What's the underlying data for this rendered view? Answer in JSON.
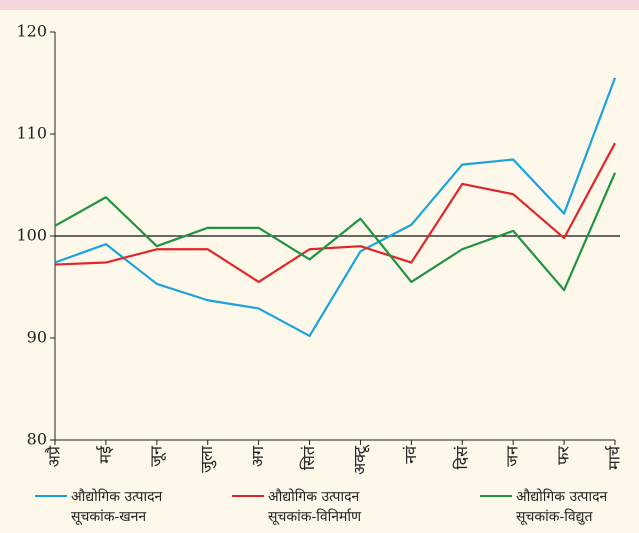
{
  "chart_data": {
    "type": "line",
    "categories": [
      "अप्रै",
      "मई",
      "जून",
      "जुला",
      "अग",
      "सितं",
      "अक्टू",
      "नवं",
      "दिसं",
      "जन",
      "फर",
      "मार्च"
    ],
    "series": [
      {
        "name": "औद्योगिक उत्पादन सूचकांक-खनन",
        "color": "#1aa3dc",
        "values": [
          97.4,
          99.2,
          95.3,
          93.7,
          92.9,
          90.2,
          98.5,
          101.1,
          107.0,
          107.5,
          102.2,
          115.5
        ]
      },
      {
        "name": "औद्योगिक उत्पादन सूचकांक-विनिर्माण",
        "color": "#e0262b",
        "values": [
          97.2,
          97.4,
          98.7,
          98.7,
          95.5,
          98.7,
          99.0,
          97.4,
          105.1,
          104.1,
          99.8,
          109.1
        ]
      },
      {
        "name": "औद्योगिक उत्पादन सूचकांक-विद्युत",
        "color": "#1f9443",
        "values": [
          101.0,
          103.8,
          99.0,
          100.8,
          100.8,
          97.7,
          101.7,
          95.5,
          98.7,
          100.5,
          94.7,
          106.2
        ]
      }
    ],
    "ylim": [
      80,
      120
    ],
    "yticks": [
      80,
      90,
      100,
      110,
      120
    ],
    "reference_line": 100
  }
}
